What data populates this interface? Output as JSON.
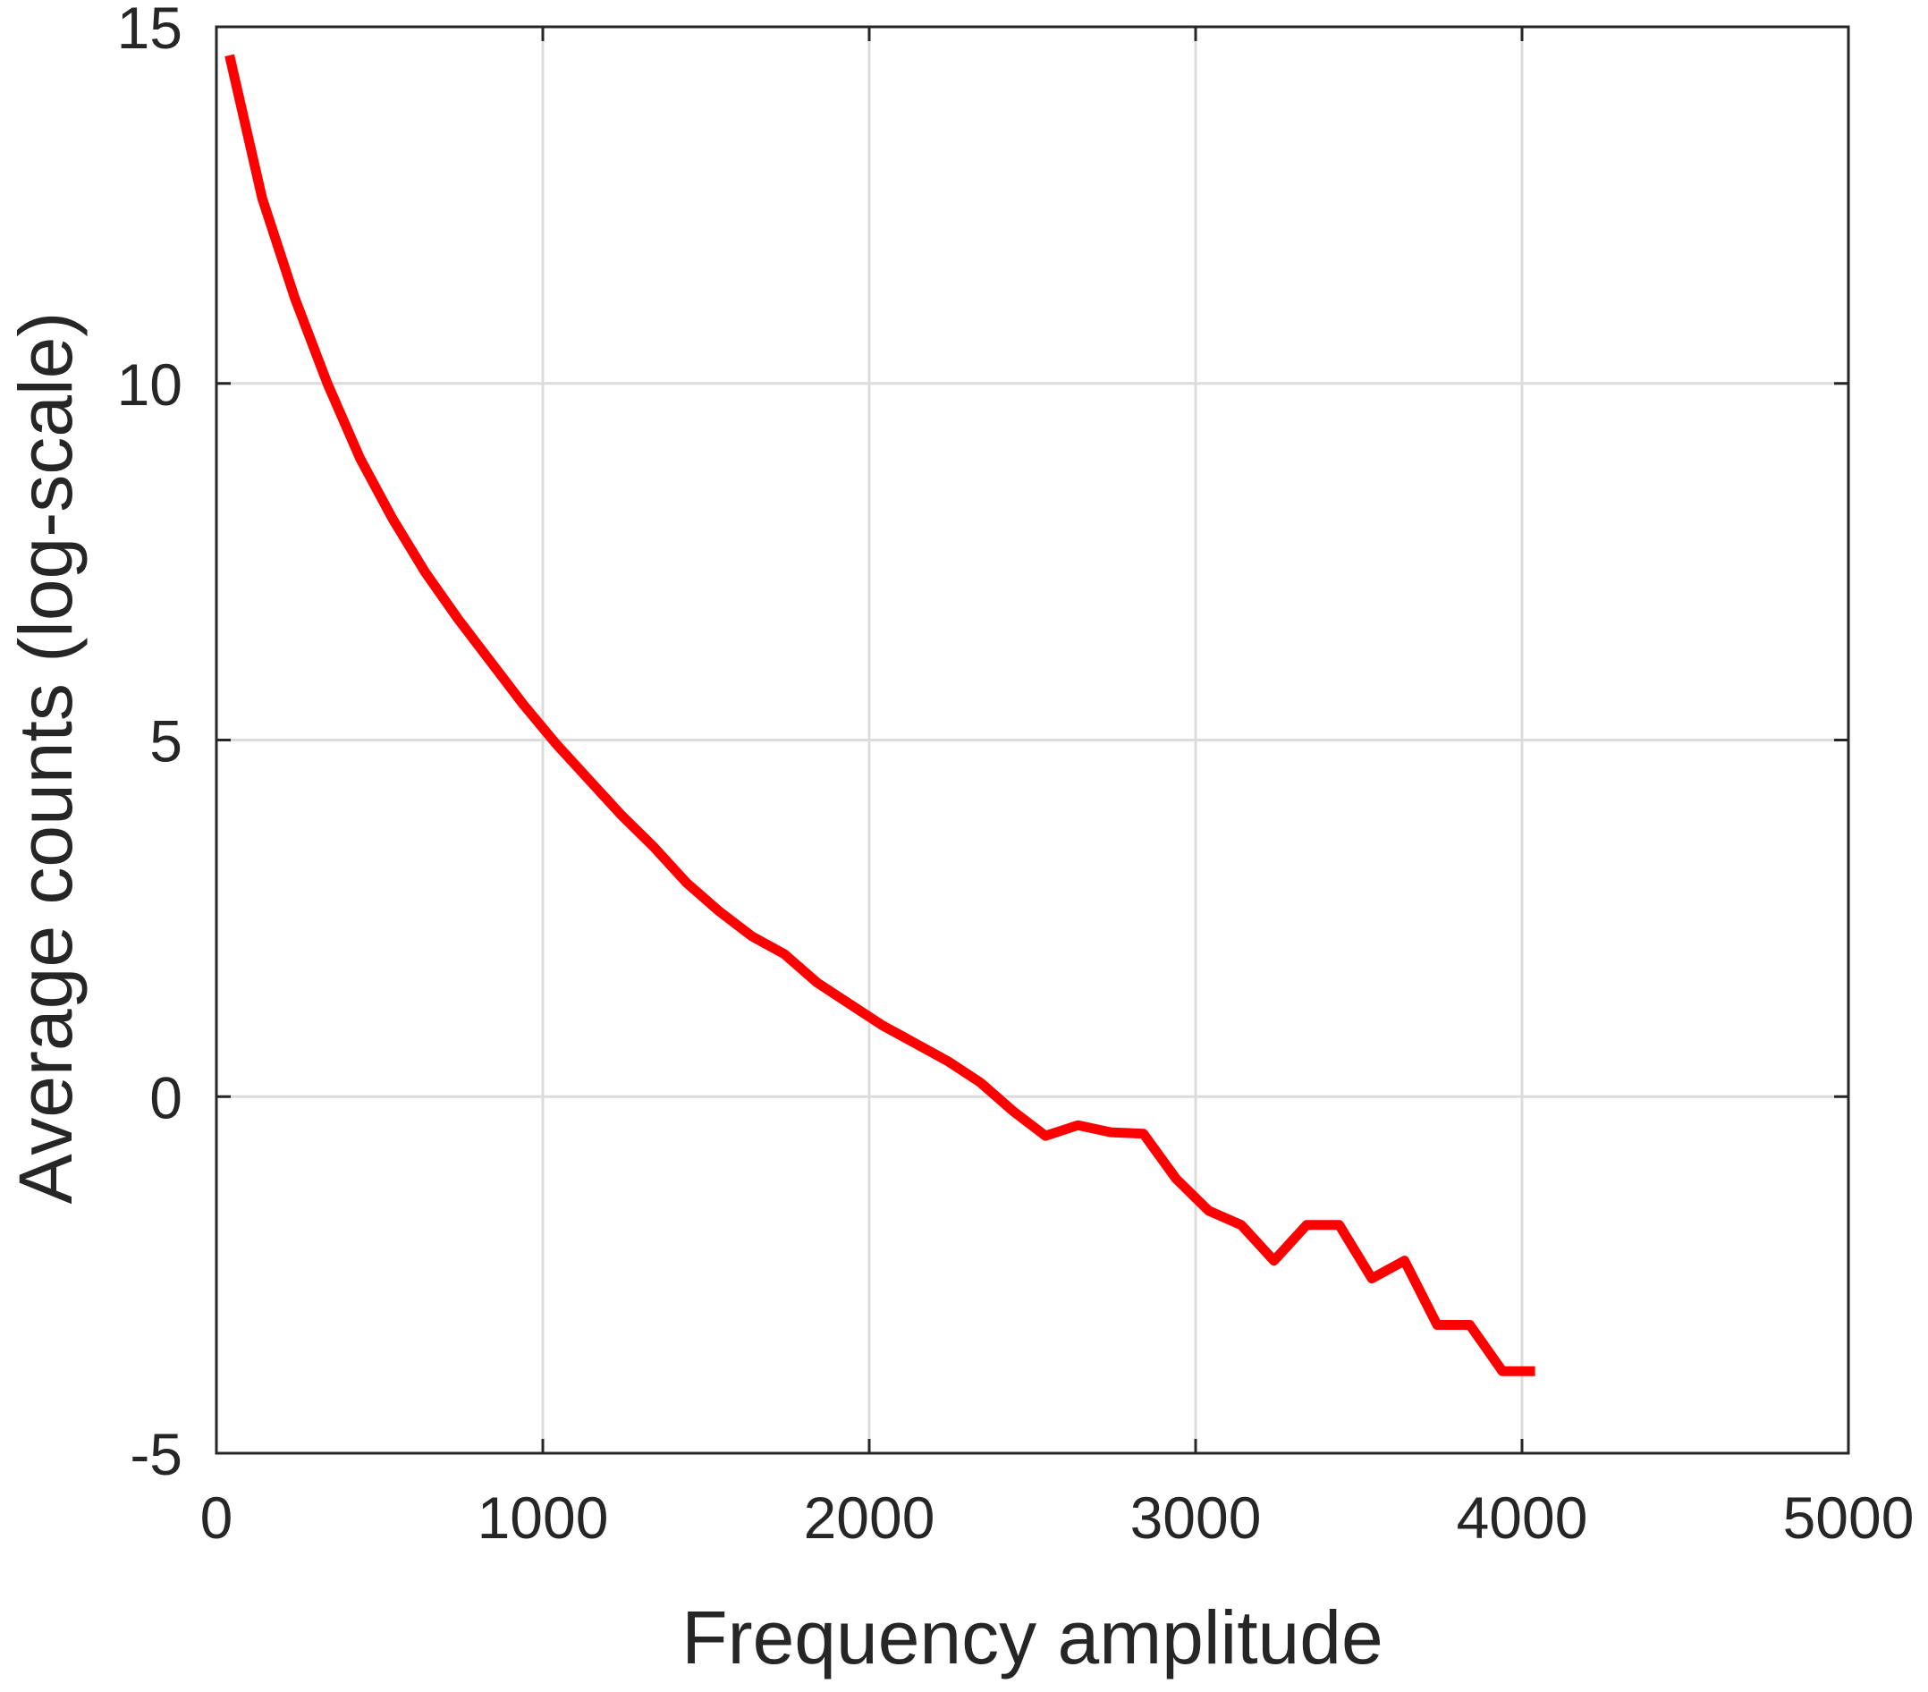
{
  "chart_data": {
    "type": "line",
    "title": "",
    "xlabel": "Frequency amplitude",
    "ylabel": "Average counts (log-scale)",
    "xlim": [
      0,
      5000
    ],
    "ylim": [
      -5,
      15
    ],
    "xticks": [
      0,
      1000,
      2000,
      3000,
      4000,
      5000
    ],
    "xtick_labels": [
      "0",
      "1000",
      "2000",
      "3000",
      "4000",
      "5000"
    ],
    "yticks": [
      -5,
      0,
      5,
      10,
      15
    ],
    "ytick_labels": [
      "-5",
      "0",
      "5",
      "10",
      "15"
    ],
    "grid": true,
    "line_color": "#ff0000",
    "series": [
      {
        "x": [
          40,
          140,
          240,
          340,
          440,
          540,
          640,
          740,
          840,
          940,
          1040,
          1140,
          1240,
          1340,
          1440,
          1540,
          1640,
          1740,
          1840,
          1940,
          2040,
          2140,
          2240,
          2340,
          2440,
          2540,
          2640,
          2740,
          2840,
          2940,
          3040,
          3140,
          3240,
          3340,
          3440,
          3540,
          3640,
          3740,
          3840,
          3940,
          4040
        ],
        "y": [
          14.6,
          12.6,
          11.2,
          10.0,
          8.95,
          8.1,
          7.35,
          6.7,
          6.1,
          5.5,
          4.95,
          4.45,
          3.95,
          3.5,
          3.0,
          2.6,
          2.25,
          2.0,
          1.6,
          1.3,
          1.0,
          0.75,
          0.5,
          0.2,
          -0.2,
          -0.55,
          -0.4,
          -0.5,
          -0.52,
          -1.15,
          -1.6,
          -1.8,
          -2.3,
          -1.8,
          -1.8,
          -2.55,
          -2.3,
          -3.2,
          -3.2,
          -3.85,
          -3.85
        ]
      }
    ]
  }
}
